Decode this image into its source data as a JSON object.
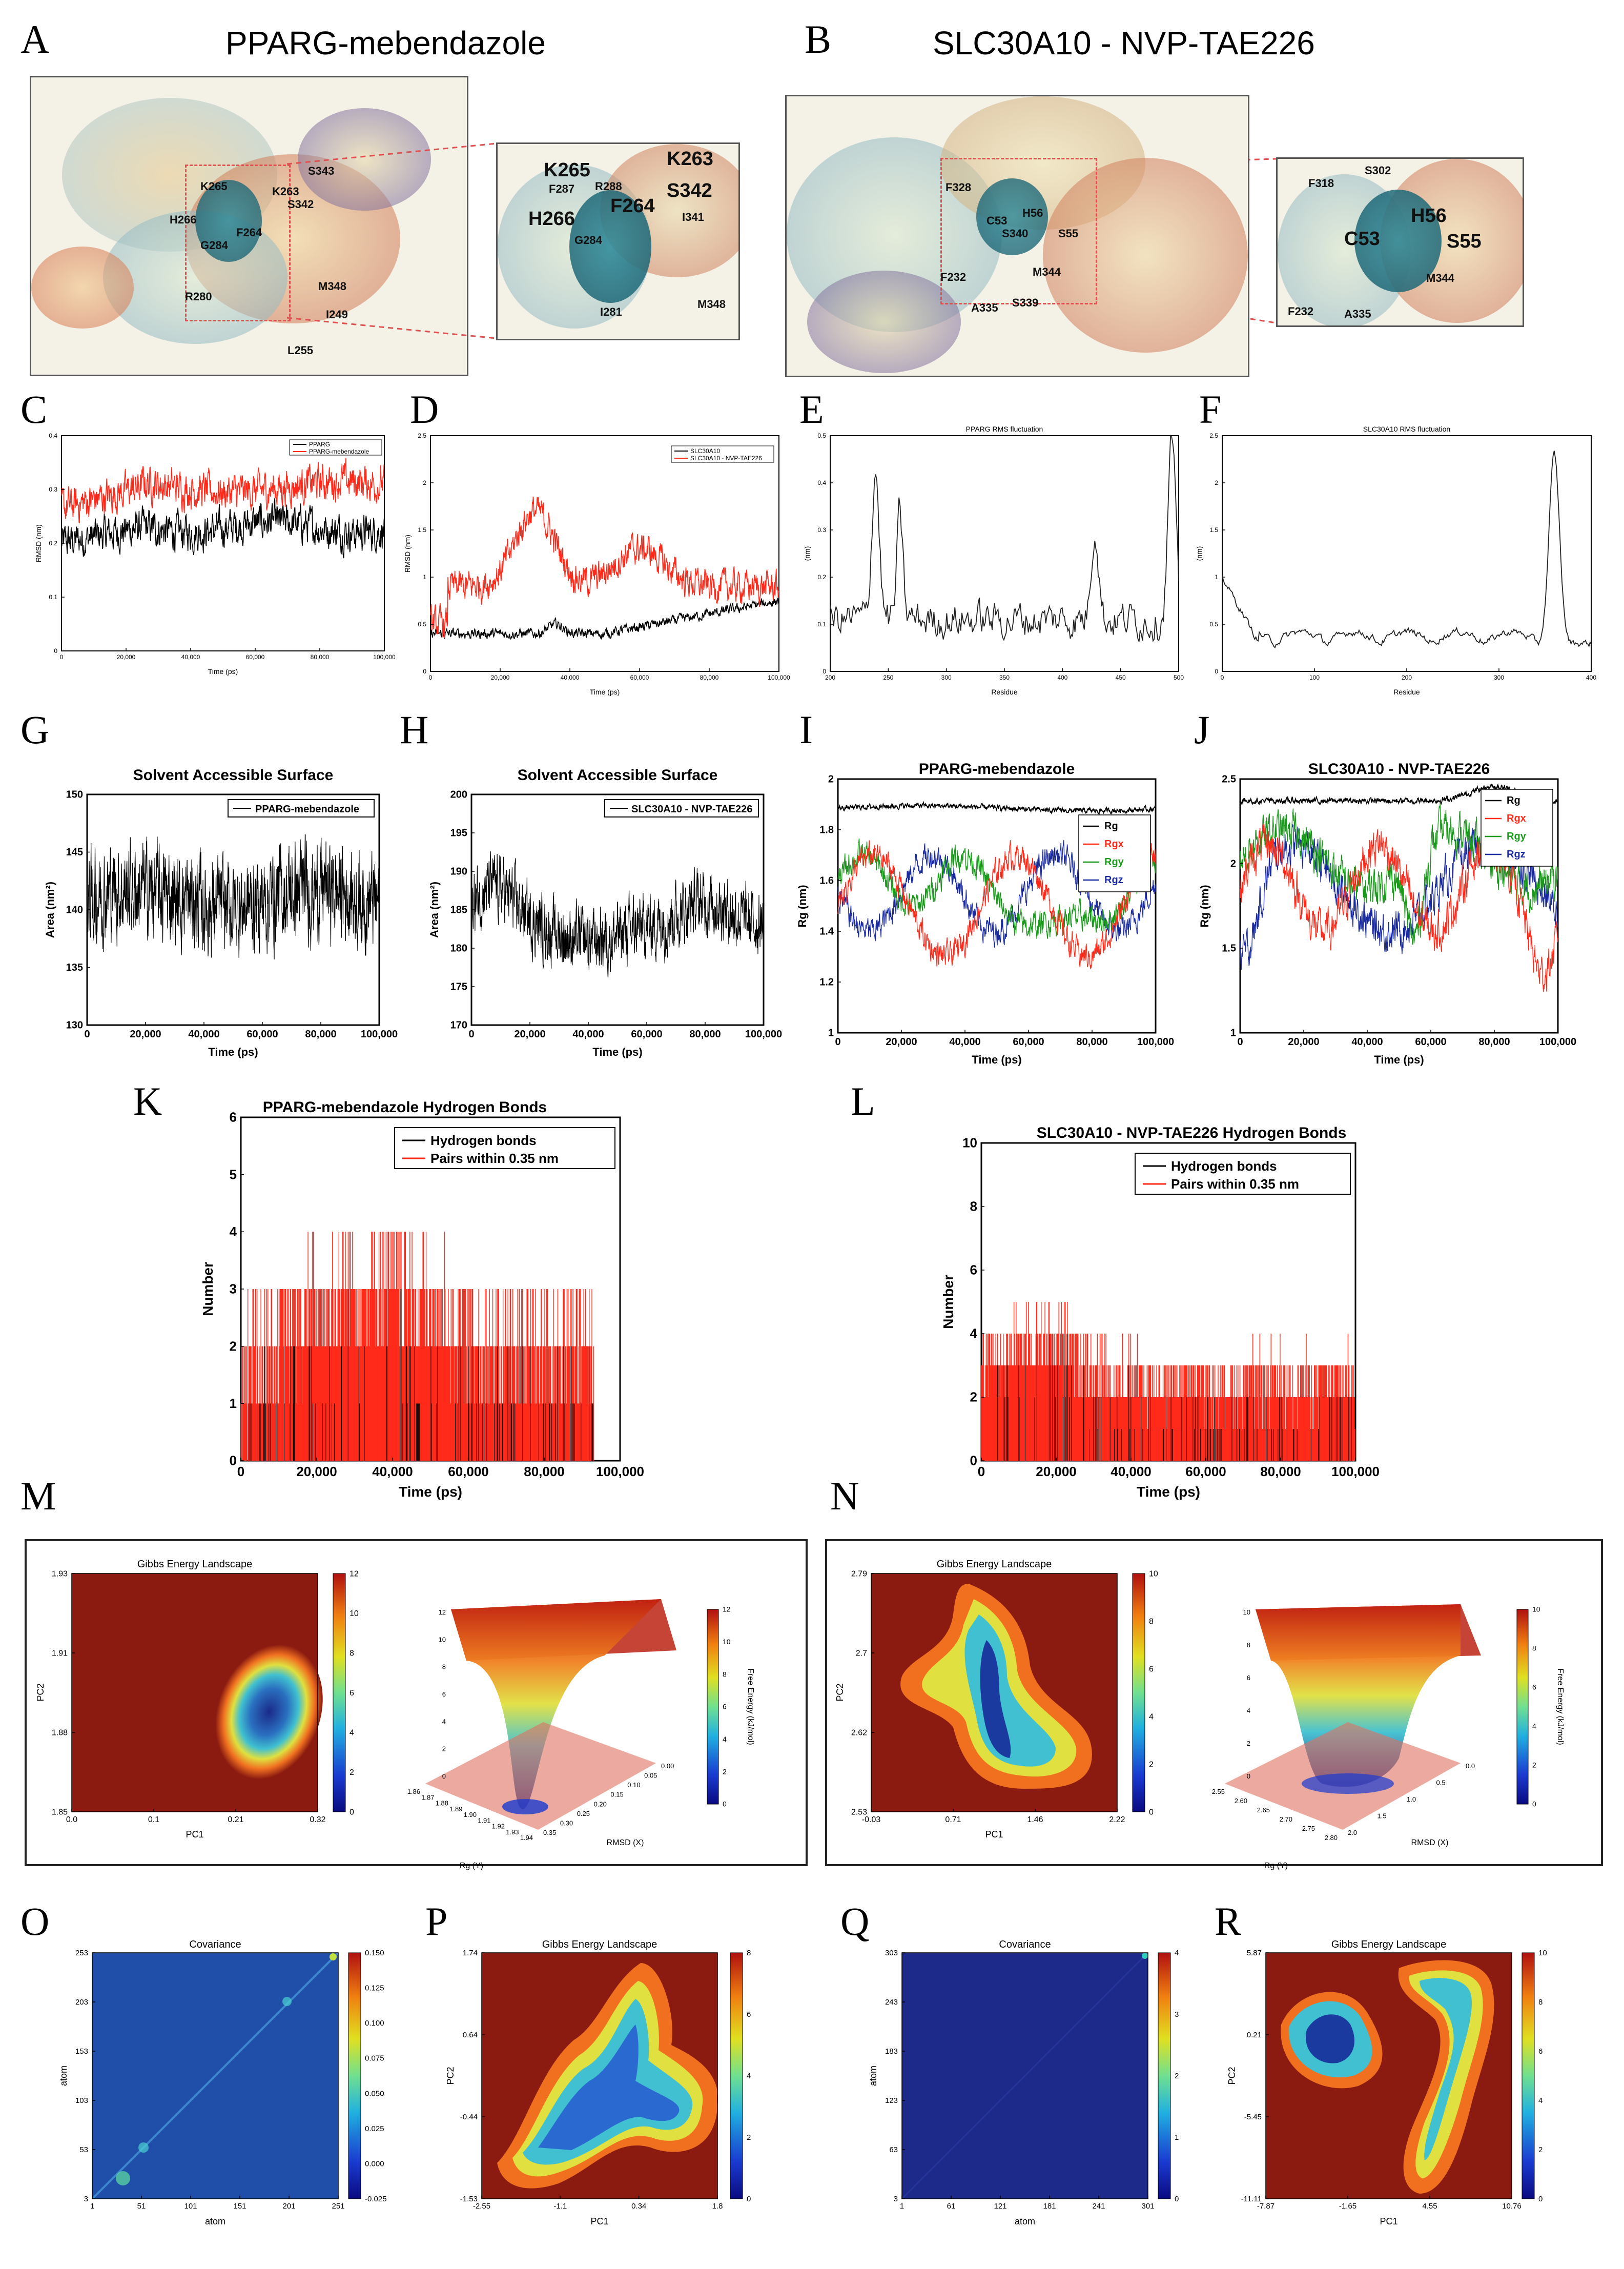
{
  "panels": {
    "A": {
      "letter": "A",
      "title": "PPARG-mebendazole",
      "residues_main": [
        "K265",
        "K263",
        "S342",
        "H266",
        "G284",
        "F264",
        "R280",
        "L255",
        "I249",
        "M348",
        "S343"
      ],
      "residues_zoom": [
        "K265",
        "K263",
        "S342",
        "H266",
        "F287",
        "R288",
        "F264",
        "G284",
        "I341",
        "M348",
        "I281"
      ]
    },
    "B": {
      "letter": "B",
      "title": "SLC30A10 - NVP-TAE226",
      "residues_main": [
        "F328",
        "S340",
        "H56",
        "C53",
        "S55",
        "M344",
        "F232",
        "A335",
        "S339"
      ],
      "residues_zoom": [
        "F318",
        "S302",
        "H56",
        "C53",
        "S55",
        "M344",
        "F232",
        "A335"
      ]
    },
    "C": {
      "letter": "C",
      "xlabel": "Time (ps)",
      "ylabel": "RMSD (nm)",
      "legend": [
        "PPARG",
        "PPARG-mebendazole"
      ],
      "xticks": [
        "0",
        "20,000",
        "40,000",
        "60,000",
        "80,000",
        "100,000"
      ],
      "yticks": [
        "0",
        "0.1",
        "0.2",
        "0.3",
        "0.4"
      ]
    },
    "D": {
      "letter": "D",
      "xlabel": "Time (ps)",
      "ylabel": "RMSD (nm)",
      "legend": [
        "SLC30A10",
        "SLC30A10 - NVP-TAE226"
      ],
      "xticks": [
        "0",
        "20,000",
        "40,000",
        "60,000",
        "80,000",
        "100,000"
      ],
      "yticks": [
        "0",
        "0.5",
        "1",
        "1.5",
        "2",
        "2.5"
      ]
    },
    "E": {
      "letter": "E",
      "title": "PPARG RMS fluctuation",
      "xlabel": "Residue",
      "ylabel": "(nm)",
      "xticks": [
        "200",
        "250",
        "300",
        "350",
        "400",
        "450",
        "500"
      ],
      "yticks": [
        "0",
        "0.1",
        "0.2",
        "0.3",
        "0.4",
        "0.5"
      ]
    },
    "F": {
      "letter": "F",
      "title": "SLC30A10 RMS fluctuation",
      "xlabel": "Residue",
      "ylabel": "(nm)",
      "xticks": [
        "0",
        "100",
        "200",
        "300",
        "400"
      ],
      "yticks": [
        "0",
        "0.5",
        "1",
        "1.5",
        "2",
        "2.5"
      ]
    },
    "G": {
      "letter": "G",
      "title": "Solvent Accessible Surface",
      "xlabel": "Time (ps)",
      "ylabel": "Area (nm²)",
      "legend": "PPARG-mebendazole",
      "xticks": [
        "0",
        "20,000",
        "40,000",
        "60,000",
        "80,000",
        "100,000"
      ],
      "yticks": [
        "130",
        "135",
        "140",
        "145",
        "150"
      ]
    },
    "H": {
      "letter": "H",
      "title": "Solvent Accessible Surface",
      "xlabel": "Time (ps)",
      "ylabel": "Area (nm²)",
      "legend": "SLC30A10 - NVP-TAE226",
      "xticks": [
        "0",
        "20,000",
        "40,000",
        "60,000",
        "80,000",
        "100,000"
      ],
      "yticks": [
        "170",
        "175",
        "180",
        "185",
        "190",
        "195",
        "200"
      ]
    },
    "I": {
      "letter": "I",
      "title": "PPARG-mebendazole",
      "xlabel": "Time (ps)",
      "ylabel": "Rg (nm)",
      "legend": [
        "Rg",
        "Rgx",
        "Rgy",
        "Rgz"
      ],
      "xticks": [
        "0",
        "20,000",
        "40,000",
        "60,000",
        "80,000",
        "100,000"
      ],
      "yticks": [
        "1",
        "1.2",
        "1.4",
        "1.6",
        "1.8",
        "2"
      ]
    },
    "J": {
      "letter": "J",
      "title": "SLC30A10 - NVP-TAE226",
      "xlabel": "Time (ps)",
      "ylabel": "Rg (nm)",
      "legend": [
        "Rg",
        "Rgx",
        "Rgy",
        "Rgz"
      ],
      "xticks": [
        "0",
        "20,000",
        "40,000",
        "60,000",
        "80,000",
        "100,000"
      ],
      "yticks": [
        "1",
        "1.5",
        "2",
        "2.5"
      ]
    },
    "K": {
      "letter": "K",
      "title": "PPARG-mebendazole Hydrogen Bonds",
      "xlabel": "Time (ps)",
      "ylabel": "Number",
      "legend": [
        "Hydrogen bonds",
        "Pairs within 0.35 nm"
      ],
      "xticks": [
        "0",
        "20,000",
        "40,000",
        "60,000",
        "80,000",
        "100,000"
      ],
      "yticks": [
        "0",
        "1",
        "2",
        "3",
        "4",
        "5",
        "6"
      ]
    },
    "L": {
      "letter": "L",
      "title": "SLC30A10 - NVP-TAE226 Hydrogen Bonds",
      "xlabel": "Time (ps)",
      "ylabel": "Number",
      "legend": [
        "Hydrogen bonds",
        "Pairs within 0.35 nm"
      ],
      "xticks": [
        "0",
        "20,000",
        "40,000",
        "60,000",
        "80,000",
        "100,000"
      ],
      "yticks": [
        "0",
        "2",
        "4",
        "6",
        "8",
        "10"
      ]
    },
    "M": {
      "letter": "M",
      "title": "Gibbs Energy Landscape",
      "xlabel": "PC1",
      "ylabel": "PC2",
      "xticks": [
        "0.0",
        "0.1",
        "0.21",
        "0.32"
      ],
      "yticks": [
        "1.85",
        "1.88",
        "1.91",
        "1.93"
      ],
      "cbar": [
        "0",
        "2",
        "4",
        "6",
        "8",
        "10",
        "12"
      ],
      "zlabel": "Free Energy (kJ/mol)",
      "s_xlabel": "Rg (Y)",
      "s_ylabel": "RMSD (X)",
      "s_xticks": [
        "1.86",
        "1.87",
        "1.88",
        "1.89",
        "1.90",
        "1.91",
        "1.92",
        "1.93",
        "1.94"
      ],
      "s_yticks": [
        "0.35",
        "0.30",
        "0.25",
        "0.20",
        "0.15",
        "0.10",
        "0.05",
        "0.00"
      ],
      "s_zticks": [
        "0",
        "2",
        "4",
        "6",
        "8",
        "10",
        "12"
      ],
      "s_cbar": [
        "0",
        "2",
        "4",
        "6",
        "8",
        "10",
        "12"
      ]
    },
    "N": {
      "letter": "N",
      "title": "Gibbs Energy Landscape",
      "xlabel": "PC1",
      "ylabel": "PC2",
      "xticks": [
        "-0.03",
        "0.71",
        "1.46",
        "2.22"
      ],
      "yticks": [
        "2.53",
        "2.62",
        "2.7",
        "2.79"
      ],
      "cbar": [
        "0",
        "2",
        "4",
        "6",
        "8",
        "10"
      ],
      "zlabel": "Free Energy (kJ/mol)",
      "s_xlabel": "Rg (Y)",
      "s_ylabel": "RMSD (X)",
      "s_xticks": [
        "2.55",
        "2.60",
        "2.65",
        "2.70",
        "2.75",
        "2.80"
      ],
      "s_yticks": [
        "2.0",
        "1.5",
        "1.0",
        "0.5",
        "0.0"
      ],
      "s_zticks": [
        "0",
        "2",
        "4",
        "6",
        "8",
        "10"
      ],
      "s_cbar": [
        "0",
        "2",
        "4",
        "6",
        "8",
        "10"
      ]
    },
    "O": {
      "letter": "O",
      "title": "Covariance",
      "xlabel": "atom",
      "ylabel": "atom",
      "xticks": [
        "1",
        "51",
        "101",
        "151",
        "201",
        "251"
      ],
      "yticks": [
        "3",
        "53",
        "103",
        "153",
        "203",
        "253"
      ],
      "cbar": [
        "-0.025",
        "0.000",
        "0.025",
        "0.050",
        "0.075",
        "0.100",
        "0.125",
        "0.150"
      ]
    },
    "P": {
      "letter": "P",
      "title": "Gibbs Energy Landscape",
      "xlabel": "PC1",
      "ylabel": "PC2",
      "xticks": [
        "-2.55",
        "-1.1",
        "0.34",
        "1.8"
      ],
      "yticks": [
        "-1.53",
        "-0.44",
        "0.64",
        "1.74"
      ],
      "cbar": [
        "0",
        "2",
        "4",
        "6",
        "8"
      ]
    },
    "Q": {
      "letter": "Q",
      "title": "Covariance",
      "xlabel": "atom",
      "ylabel": "atom",
      "xticks": [
        "1",
        "61",
        "121",
        "181",
        "241",
        "301"
      ],
      "yticks": [
        "3",
        "63",
        "123",
        "183",
        "243",
        "303"
      ],
      "cbar": [
        "0",
        "1",
        "2",
        "3",
        "4"
      ]
    },
    "R": {
      "letter": "R",
      "title": "Gibbs Energy Landscape",
      "xlabel": "PC1",
      "ylabel": "PC2",
      "xticks": [
        "-7.87",
        "-1.65",
        "4.55",
        "10.76"
      ],
      "yticks": [
        "-11.11",
        "-5.45",
        "0.21",
        "5.87"
      ],
      "cbar": [
        "0",
        "2",
        "4",
        "6",
        "8",
        "10"
      ]
    }
  },
  "colors": {
    "red": "#ff2a1a",
    "black": "#000000",
    "green": "#1a9a1a",
    "blue": "#1a2aa0"
  }
}
